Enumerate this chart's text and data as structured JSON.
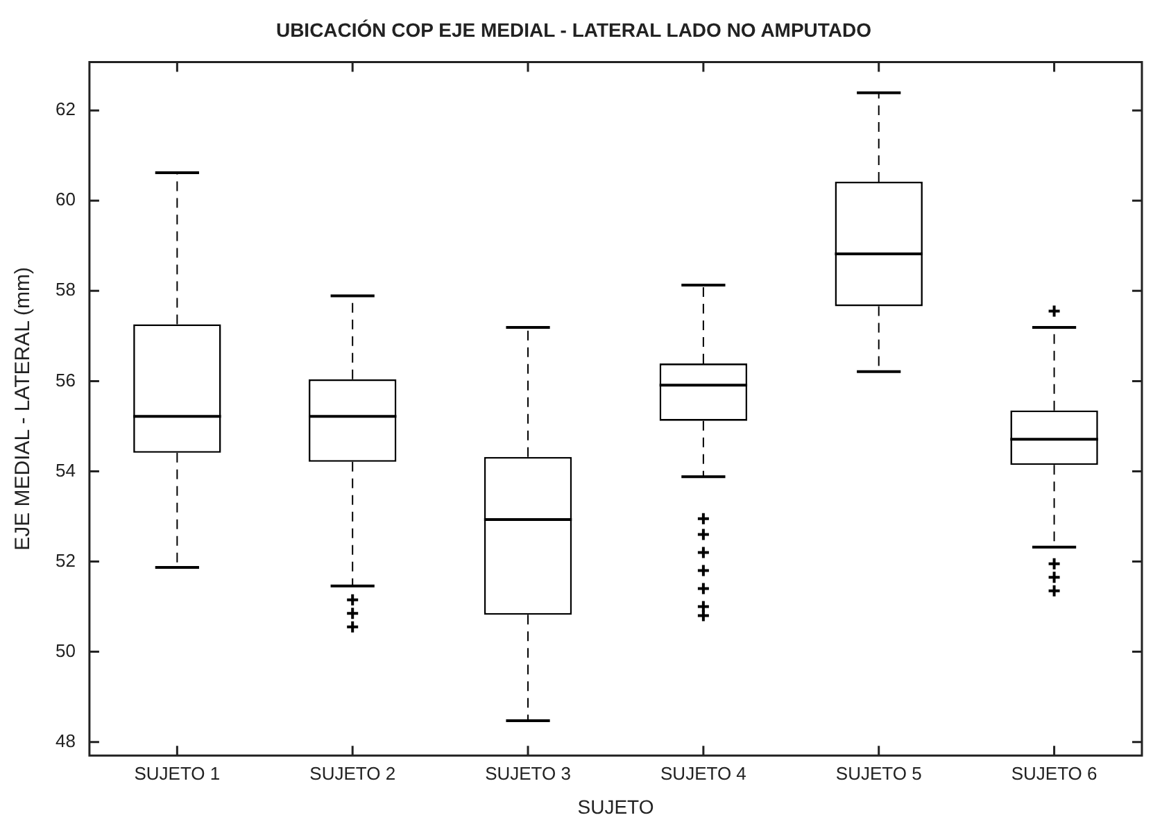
{
  "chart_data": {
    "type": "box",
    "title": "UBICACIÓN COP EJE MEDIAL - LATERAL LADO NO AMPUTADO",
    "xlabel": "SUJETO",
    "ylabel": "EJE MEDIAL - LATERAL (mm)",
    "categories": [
      "SUJETO 1",
      "SUJETO 2",
      "SUJETO 3",
      "SUJETO 4",
      "SUJETO 5",
      "SUJETO 6"
    ],
    "boxes": [
      {
        "low": 51.87,
        "q1": 54.41,
        "median": 55.22,
        "q3": 57.26,
        "high": 60.62
      },
      {
        "low": 51.46,
        "q1": 54.21,
        "median": 55.22,
        "q3": 56.04,
        "high": 57.89,
        "outliers": [
          51.15,
          50.85,
          50.55
        ]
      },
      {
        "low": 48.47,
        "q1": 50.82,
        "median": 52.93,
        "q3": 54.32,
        "high": 57.19
      },
      {
        "low": 53.88,
        "q1": 55.12,
        "median": 55.91,
        "q3": 56.39,
        "high": 58.13,
        "outliers": [
          52.95,
          52.6,
          52.2,
          51.8,
          51.4,
          51.0,
          50.8
        ]
      },
      {
        "low": 56.21,
        "q1": 57.66,
        "median": 58.82,
        "q3": 60.42,
        "high": 62.39
      },
      {
        "low": 52.32,
        "q1": 54.14,
        "median": 54.71,
        "q3": 55.35,
        "high": 57.19,
        "outliers": [
          57.55,
          51.95,
          51.65,
          51.35
        ]
      }
    ],
    "color": "#000000",
    "ylim": [
      47.7,
      63.07
    ],
    "yticks": [
      48,
      50,
      52,
      54,
      56,
      58,
      60,
      62
    ],
    "grid": false,
    "legend": false,
    "marker": "cross"
  }
}
